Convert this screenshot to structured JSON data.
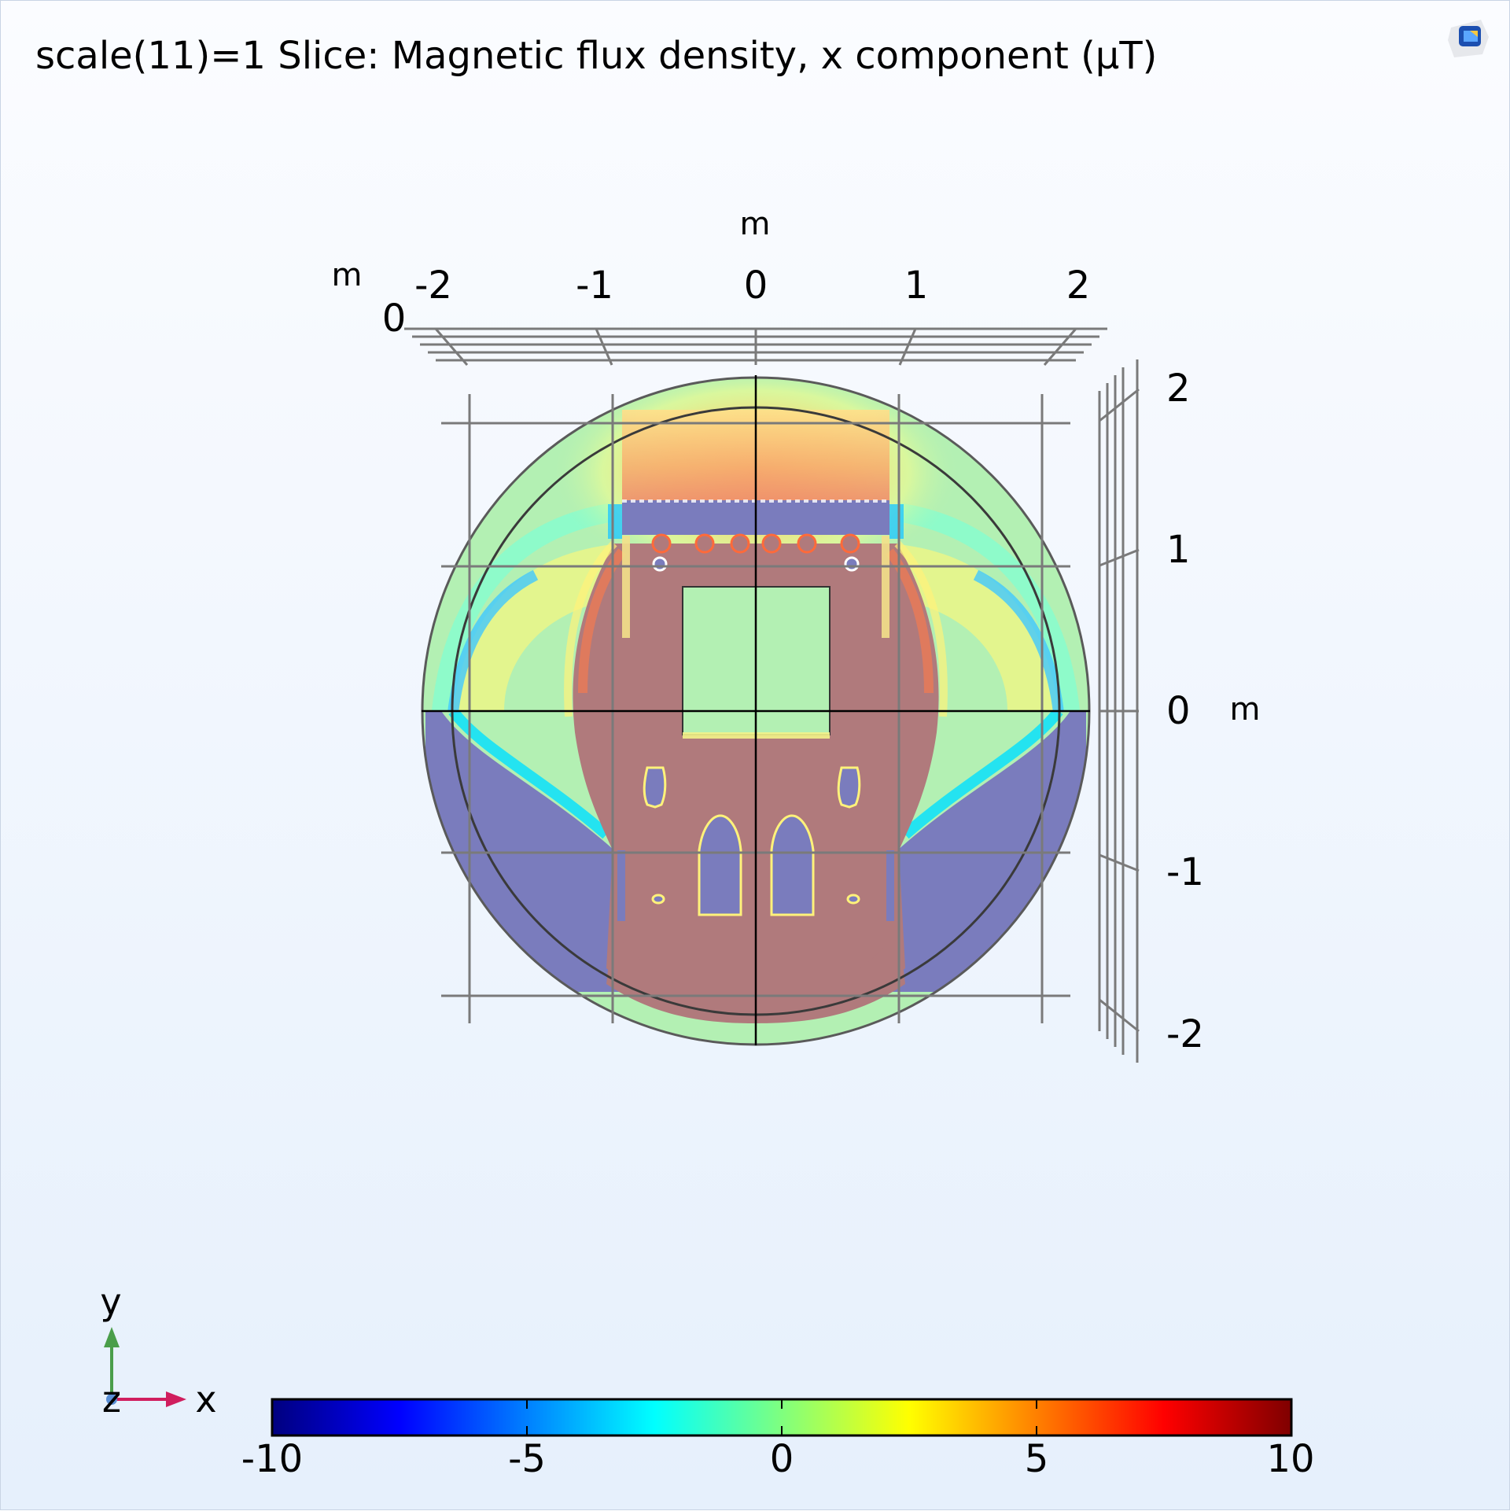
{
  "plot": {
    "title": "scale(11)=1 Slice: Magnetic flux density, x component (μT)",
    "unit": "m"
  },
  "chart_data": {
    "type": "heatmap",
    "title": "scale(11)=1 Slice: Magnetic flux density, x component (μT)",
    "quantity": "Magnetic flux density, x component",
    "unit": "μT",
    "x_axis": {
      "label": "m",
      "ticks": [
        "-2",
        "-1",
        "0",
        "1",
        "2"
      ]
    },
    "y_axis": {
      "label": "m",
      "ticks": [
        "2",
        "1",
        "0",
        "-1",
        "-2"
      ]
    },
    "z_axis": {
      "label": "m",
      "ticks": [
        "0"
      ]
    },
    "xlim": [
      -2.1,
      2.1
    ],
    "ylim": [
      -2.1,
      2.1
    ],
    "colorbar": {
      "range": [
        -10,
        10
      ],
      "ticks": [
        "-10",
        "-5",
        "0",
        "5",
        "10"
      ],
      "colormap": [
        "#00007f",
        "#0000ff",
        "#0080ff",
        "#00ffff",
        "#5fffa0",
        "#a0ff40",
        "#ffff00",
        "#ff8000",
        "#ff0000",
        "#7f0000"
      ]
    },
    "triad": {
      "x": "x",
      "y": "y",
      "z": "z"
    },
    "colors": {
      "positive_region": "#b07a7c",
      "negative_region": "#7a7cbd",
      "neutral_region": "#b3f0b3"
    }
  }
}
